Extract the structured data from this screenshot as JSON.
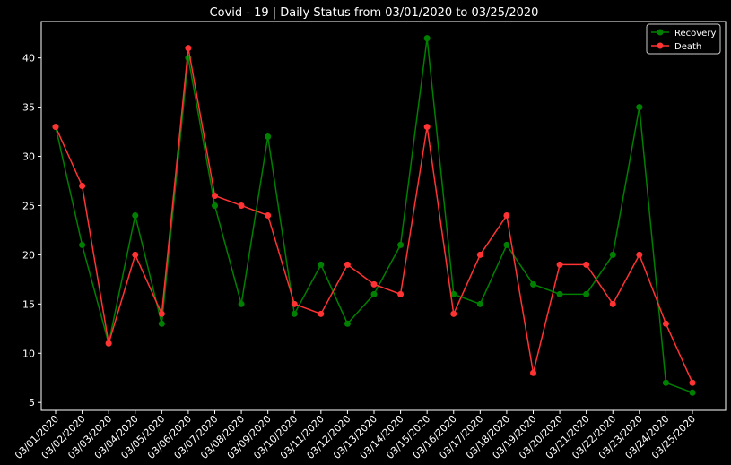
{
  "chart_data": {
    "type": "line",
    "title": "Covid - 19 | Daily Status from 03/01/2020 to 03/25/2020",
    "xlabel": "",
    "ylabel": "",
    "categories": [
      "03/01/2020",
      "03/02/2020",
      "03/03/2020",
      "03/04/2020",
      "03/05/2020",
      "03/06/2020",
      "03/07/2020",
      "03/08/2020",
      "03/09/2020",
      "03/10/2020",
      "03/11/2020",
      "03/12/2020",
      "03/13/2020",
      "03/14/2020",
      "03/15/2020",
      "03/16/2020",
      "03/17/2020",
      "03/18/2020",
      "03/19/2020",
      "03/20/2020",
      "03/21/2020",
      "03/22/2020",
      "03/23/2020",
      "03/24/2020",
      "03/25/2020"
    ],
    "yticks": [
      5,
      10,
      15,
      20,
      25,
      30,
      35,
      40
    ],
    "ylim": [
      4.2,
      43.7
    ],
    "grid": false,
    "legend_position": "top-right",
    "series": [
      {
        "name": "Recovery",
        "color": "#008000",
        "values": [
          33,
          21,
          11,
          24,
          13,
          40,
          25,
          15,
          32,
          14,
          19,
          13,
          16,
          21,
          42,
          16,
          15,
          21,
          17,
          16,
          16,
          20,
          35,
          7,
          6
        ]
      },
      {
        "name": "Death",
        "color": "#ff3333",
        "values": [
          33,
          27,
          11,
          20,
          14,
          41,
          26,
          25,
          24,
          15,
          14,
          19,
          17,
          16,
          33,
          14,
          20,
          24,
          8,
          19,
          19,
          15,
          20,
          13,
          7
        ]
      }
    ]
  }
}
